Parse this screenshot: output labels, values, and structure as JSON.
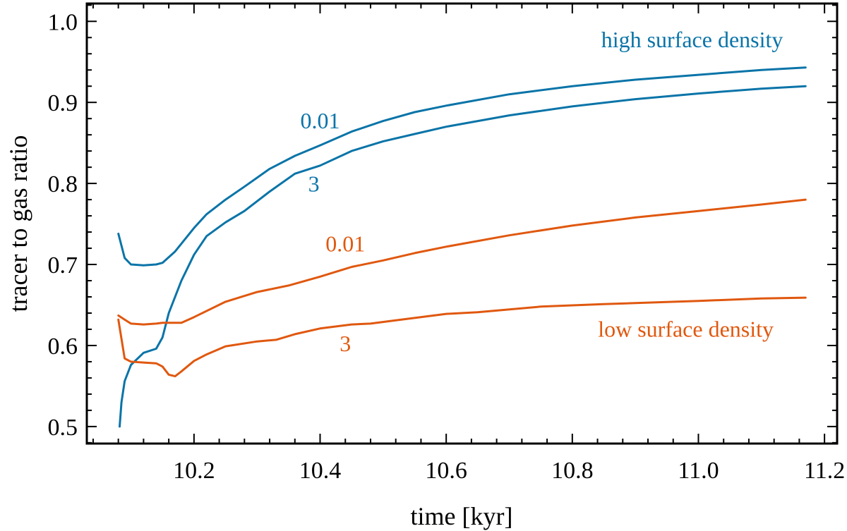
{
  "chart_data": {
    "type": "line",
    "xlabel": "time [kyr]",
    "ylabel": "tracer to gas ratio",
    "xlim": [
      10.03,
      11.22
    ],
    "ylim": [
      0.479,
      1.022
    ],
    "x_ticks": [
      10.2,
      10.4,
      10.6,
      10.8,
      11.0,
      11.2
    ],
    "x_tick_labels": [
      "10.2",
      "10.4",
      "10.6",
      "10.8",
      "11.0",
      "11.2"
    ],
    "y_ticks": [
      0.5,
      0.6,
      0.7,
      0.8,
      0.9,
      1.0
    ],
    "y_tick_labels": [
      "0.5",
      "0.6",
      "0.7",
      "0.8",
      "0.9",
      "1.0"
    ],
    "colors": {
      "high": "#0a74a8",
      "low": "#e0580f"
    },
    "grid": false,
    "annotations": [
      {
        "text": "high surface density",
        "group": "high",
        "x": 10.99,
        "y": 0.968
      },
      {
        "text": "0.01",
        "group": "high",
        "x": 10.4,
        "y": 0.868
      },
      {
        "text": "3",
        "group": "high",
        "x": 10.39,
        "y": 0.79
      },
      {
        "text": "0.01",
        "group": "low",
        "x": 10.44,
        "y": 0.716
      },
      {
        "text": "3",
        "group": "low",
        "x": 10.44,
        "y": 0.593
      },
      {
        "text": "low surface density",
        "group": "low",
        "x": 10.98,
        "y": 0.611
      }
    ],
    "series": [
      {
        "group": "high",
        "x": [
          10.08,
          10.09,
          10.1,
          10.12,
          10.14,
          10.15,
          10.17,
          10.2,
          10.22,
          10.25,
          10.28,
          10.32,
          10.36,
          10.4,
          10.45,
          10.5,
          10.55,
          10.6,
          10.7,
          10.8,
          10.9,
          11.0,
          11.1,
          11.17
        ],
        "y": [
          0.738,
          0.708,
          0.7,
          0.699,
          0.7,
          0.702,
          0.716,
          0.745,
          0.762,
          0.78,
          0.796,
          0.818,
          0.834,
          0.847,
          0.864,
          0.877,
          0.888,
          0.896,
          0.91,
          0.92,
          0.928,
          0.934,
          0.94,
          0.943
        ]
      },
      {
        "group": "high",
        "x": [
          10.082,
          10.085,
          10.09,
          10.1,
          10.12,
          10.14,
          10.15,
          10.16,
          10.18,
          10.2,
          10.22,
          10.25,
          10.28,
          10.32,
          10.36,
          10.4,
          10.45,
          10.5,
          10.55,
          10.6,
          10.7,
          10.8,
          10.9,
          11.0,
          11.1,
          11.17
        ],
        "y": [
          0.5,
          0.53,
          0.556,
          0.576,
          0.591,
          0.596,
          0.61,
          0.64,
          0.68,
          0.712,
          0.735,
          0.752,
          0.766,
          0.79,
          0.812,
          0.822,
          0.84,
          0.852,
          0.861,
          0.87,
          0.884,
          0.895,
          0.904,
          0.911,
          0.917,
          0.92
        ]
      },
      {
        "group": "low",
        "x": [
          10.08,
          10.09,
          10.1,
          10.12,
          10.14,
          10.15,
          10.18,
          10.2,
          10.25,
          10.3,
          10.35,
          10.4,
          10.45,
          10.5,
          10.55,
          10.6,
          10.7,
          10.8,
          10.9,
          11.0,
          11.1,
          11.17
        ],
        "y": [
          0.637,
          0.632,
          0.627,
          0.626,
          0.627,
          0.628,
          0.628,
          0.635,
          0.654,
          0.666,
          0.674,
          0.685,
          0.697,
          0.705,
          0.714,
          0.722,
          0.736,
          0.748,
          0.758,
          0.766,
          0.774,
          0.78
        ]
      },
      {
        "group": "low",
        "x": [
          10.08,
          10.09,
          10.1,
          10.12,
          10.14,
          10.15,
          10.16,
          10.17,
          10.18,
          10.2,
          10.22,
          10.25,
          10.3,
          10.33,
          10.36,
          10.4,
          10.45,
          10.48,
          10.52,
          10.6,
          10.65,
          10.75,
          10.85,
          11.0,
          11.1,
          11.17
        ],
        "y": [
          0.632,
          0.584,
          0.58,
          0.579,
          0.578,
          0.574,
          0.564,
          0.562,
          0.568,
          0.581,
          0.589,
          0.599,
          0.605,
          0.607,
          0.614,
          0.621,
          0.626,
          0.627,
          0.631,
          0.639,
          0.641,
          0.648,
          0.651,
          0.655,
          0.658,
          0.659
        ]
      }
    ]
  }
}
